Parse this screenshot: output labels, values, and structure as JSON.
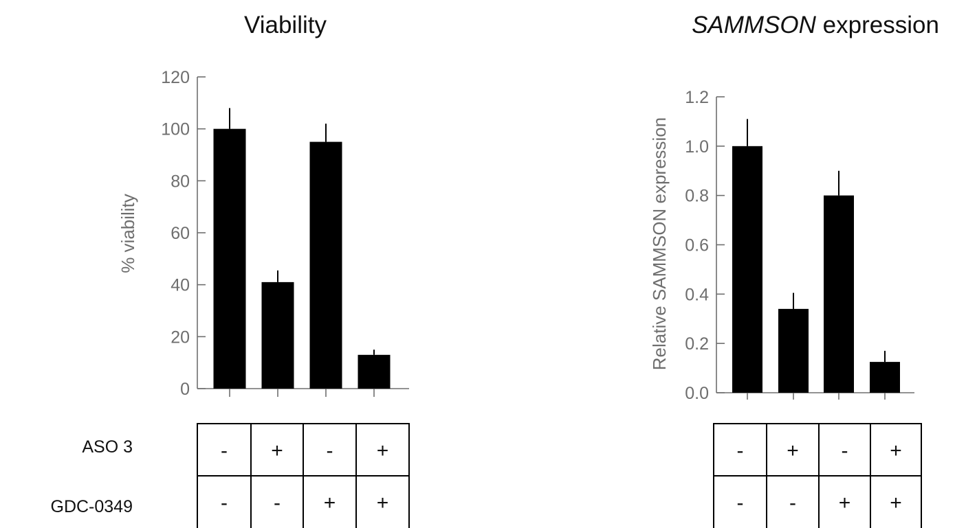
{
  "chart_data": [
    {
      "type": "bar",
      "title": "Viability",
      "ylabel": "% viability",
      "xlabel": "",
      "ylim": [
        0,
        120
      ],
      "yticks": [
        0,
        20,
        40,
        60,
        80,
        100,
        120
      ],
      "ytick_labels": [
        "0",
        "20",
        "40",
        "60",
        "80",
        "100",
        "120"
      ],
      "values": [
        100,
        41,
        95,
        13
      ],
      "errors": [
        8,
        4.5,
        7,
        2
      ],
      "bar_color": "#000000",
      "conditions": [
        {
          "label": "ASO 3",
          "signs": [
            "-",
            "+",
            "-",
            "+"
          ]
        },
        {
          "label": "GDC-0349",
          "signs": [
            "-",
            "-",
            "+",
            "+"
          ]
        }
      ]
    },
    {
      "type": "bar",
      "title_italic": "SAMMSON",
      "title_rest": " expression",
      "ylabel": "Relative SAMMSON expression",
      "xlabel": "",
      "ylim": [
        0,
        1.2
      ],
      "yticks": [
        0,
        0.2,
        0.4,
        0.6,
        0.8,
        1.0,
        1.2
      ],
      "ytick_labels": [
        "0.0",
        "0.2",
        "0.4",
        "0.6",
        "0.8",
        "1.0",
        "1.2"
      ],
      "values": [
        1.0,
        0.34,
        0.8,
        0.125
      ],
      "errors": [
        0.11,
        0.065,
        0.1,
        0.045
      ],
      "bar_color": "#000000",
      "conditions": [
        {
          "label": "",
          "signs": [
            "-",
            "+",
            "-",
            "+"
          ]
        },
        {
          "label": "",
          "signs": [
            "-",
            "-",
            "+",
            "+"
          ]
        }
      ]
    }
  ]
}
